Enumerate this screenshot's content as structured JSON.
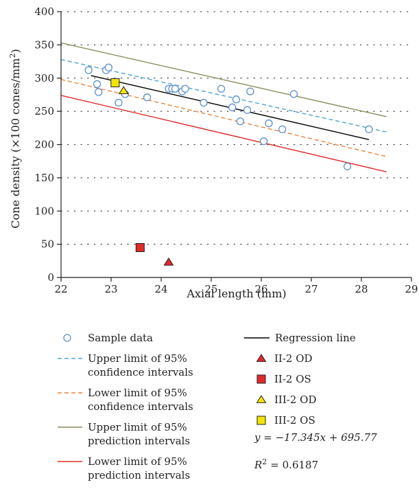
{
  "chart_data": {
    "type": "scatter",
    "xlabel": "Axial length (mm)",
    "ylabel_main": "Cone density (×100 cones/mm",
    "ylabel_sup": "2",
    "ylabel_end": ")",
    "xlim": [
      22,
      29
    ],
    "ylim": [
      0,
      400
    ],
    "x_ticks": [
      "22",
      "23",
      "24",
      "25",
      "26",
      "27",
      "28",
      "29"
    ],
    "y_ticks": [
      "0",
      "50",
      "100",
      "150",
      "200",
      "250",
      "300",
      "350",
      "400"
    ],
    "grid": "horizontal-dotted",
    "colors": {
      "sample": "#5b8fcf",
      "regression": "#000000",
      "upper_ci": "#4aa3d8",
      "lower_ci": "#e8833a",
      "upper_pi": "#8a8a5c",
      "lower_pi": "#e02a2a",
      "ii2_od": "#e02a2a",
      "ii2_os": "#e02a2a",
      "iii2_od": "#f2e600",
      "iii2_os": "#f2e600"
    },
    "sample_data": [
      [
        22.55,
        312
      ],
      [
        22.72,
        291
      ],
      [
        22.75,
        279
      ],
      [
        22.9,
        312
      ],
      [
        22.95,
        316
      ],
      [
        23.15,
        263
      ],
      [
        23.28,
        276
      ],
      [
        23.72,
        271
      ],
      [
        24.15,
        284
      ],
      [
        24.22,
        284
      ],
      [
        24.28,
        284
      ],
      [
        24.42,
        280
      ],
      [
        24.48,
        284
      ],
      [
        24.85,
        263
      ],
      [
        25.2,
        284
      ],
      [
        25.42,
        256
      ],
      [
        25.5,
        268
      ],
      [
        25.58,
        235
      ],
      [
        25.72,
        252
      ],
      [
        25.78,
        280
      ],
      [
        26.05,
        205
      ],
      [
        26.15,
        232
      ],
      [
        26.42,
        223
      ],
      [
        26.65,
        276
      ],
      [
        27.72,
        167
      ],
      [
        28.15,
        223
      ]
    ],
    "regression_line": [
      [
        22.6,
        303.8
      ],
      [
        28.15,
        207.5
      ]
    ],
    "upper_ci_line": [
      [
        22,
        328
      ],
      [
        28.5,
        219
      ]
    ],
    "lower_ci_line": [
      [
        22,
        298
      ],
      [
        28.5,
        182
      ]
    ],
    "upper_pi_line": [
      [
        22,
        353
      ],
      [
        28.5,
        242
      ]
    ],
    "lower_pi_line": [
      [
        22,
        274
      ],
      [
        28.5,
        159
      ]
    ],
    "special_points": [
      {
        "key": "ii2_od",
        "shape": "triangle",
        "x": 24.15,
        "y": 23
      },
      {
        "key": "ii2_os",
        "shape": "square",
        "x": 23.58,
        "y": 45
      },
      {
        "key": "iii2_od",
        "shape": "triangle",
        "x": 23.25,
        "y": 281
      },
      {
        "key": "iii2_os",
        "shape": "square",
        "x": 23.08,
        "y": 293
      }
    ],
    "legend_left": [
      {
        "key": "sample",
        "lines": [
          "Sample data"
        ]
      },
      {
        "key": "upper_ci",
        "lines": [
          "Upper limit of 95%",
          "confidence intervals"
        ]
      },
      {
        "key": "lower_ci",
        "lines": [
          "Lower limit of 95%",
          "confidence intervals"
        ]
      },
      {
        "key": "upper_pi",
        "lines": [
          "Upper limit of 95%",
          "prediction intervals"
        ]
      },
      {
        "key": "lower_pi",
        "lines": [
          "Lower limit of 95%",
          "prediction intervals"
        ]
      }
    ],
    "legend_right": [
      {
        "key": "regression",
        "label": "Regression line"
      },
      {
        "key": "ii2_od",
        "label": "II-2 OD"
      },
      {
        "key": "ii2_os",
        "label": "II-2 OS"
      },
      {
        "key": "iii2_od",
        "label": "III-2 OD"
      },
      {
        "key": "iii2_os",
        "label": "III-2 OS"
      }
    ],
    "equation": "y = −17.345x + 695.77",
    "r2_value": "= 0.6187"
  }
}
